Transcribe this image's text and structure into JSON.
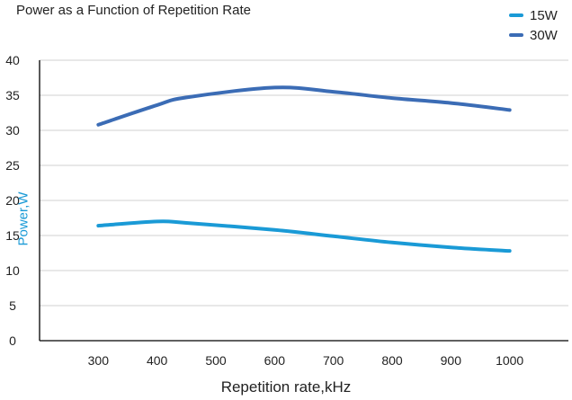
{
  "chart_data": {
    "type": "line",
    "title": "Power as a Function of Repetition Rate",
    "xlabel": "Repetition rate,kHz",
    "ylabel": "Power,W",
    "categories": [
      "300",
      "400",
      "500",
      "600",
      "700",
      "800",
      "900",
      "1000"
    ],
    "x_range": [
      200,
      1100
    ],
    "ylim": [
      0,
      40
    ],
    "y_ticks": [
      0,
      5,
      10,
      15,
      20,
      25,
      30,
      35,
      40
    ],
    "grid": true,
    "legend_position": "top-right",
    "series": [
      {
        "name": "15W",
        "color": "#1a9ad6",
        "x": [
          300,
          400,
          450,
          600,
          700,
          800,
          900,
          1000
        ],
        "y": [
          16.4,
          17.0,
          16.8,
          15.8,
          14.9,
          14.0,
          13.3,
          12.8
        ]
      },
      {
        "name": "30W",
        "color": "#3b6cb5",
        "x": [
          300,
          400,
          450,
          600,
          700,
          800,
          900,
          1000
        ],
        "y": [
          30.8,
          33.6,
          34.7,
          36.1,
          35.5,
          34.6,
          33.9,
          32.9
        ]
      }
    ]
  },
  "colors": {
    "axis": "#000000",
    "grid": "#d0d0d0",
    "ylabel_color": "#1a9ad6"
  }
}
